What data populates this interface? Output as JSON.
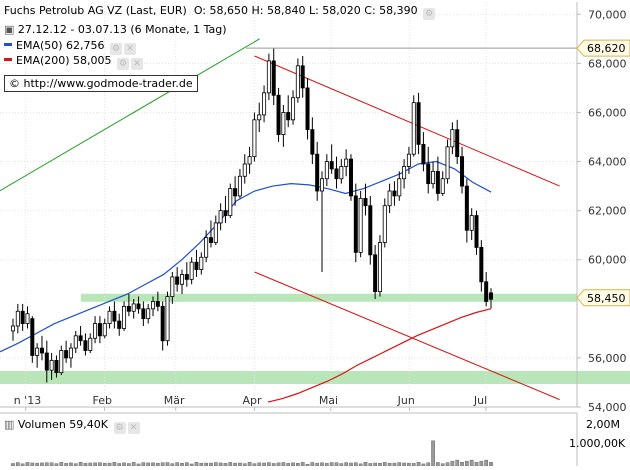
{
  "header": {
    "title": "Fuchs Petrolub AG VZ (Last, EUR)",
    "ohlc": "O: 58,650  H: 58,840  L: 58,020  C: 58,390",
    "range": "27.12.12 - 03.07.13 (6 Monate, 1 Tag)",
    "ema50": "EMA(50)  62,756",
    "ema200": "EMA(200)  58,005",
    "source": "http://www.godmode-trader.de"
  },
  "volume": {
    "label": "Volumen  59,40K",
    "ticks": [
      "2,00M",
      "1.000,00K"
    ]
  },
  "colors": {
    "ema50": "#2050d0",
    "ema200": "#dd1111",
    "channel": "#dd1111",
    "uptrend": "#22a022",
    "support_zone": "#b8e6b8",
    "candle": "#000000"
  },
  "chart_data": {
    "type": "candlestick",
    "ylim": [
      54000,
      70500
    ],
    "y_ticks": [
      {
        "value": 70000,
        "label": "70,000"
      },
      {
        "value": 68000,
        "label": "68,000"
      },
      {
        "value": 66000,
        "label": "66,000"
      },
      {
        "value": 64000,
        "label": "64,000"
      },
      {
        "value": 62000,
        "label": "62,000"
      },
      {
        "value": 60000,
        "label": "60,000"
      },
      {
        "value": 56000,
        "label": "56,000"
      },
      {
        "value": 54000,
        "label": "54,000"
      }
    ],
    "x_ticks": [
      {
        "date": "2013-01-01",
        "label": "n '13"
      },
      {
        "date": "2013-02-01",
        "label": "Feb"
      },
      {
        "date": "2013-03-01",
        "label": "Mär"
      },
      {
        "date": "2013-04-01",
        "label": "Apr"
      },
      {
        "date": "2013-05-01",
        "label": "Mai"
      },
      {
        "date": "2013-06-01",
        "label": "Jun"
      },
      {
        "date": "2013-07-01",
        "label": "Jul"
      }
    ],
    "price_markers": [
      {
        "value": 68620,
        "label": "68,620",
        "style": "resistance-line"
      },
      {
        "value": 58450,
        "label": "58,450",
        "style": "support-zone"
      }
    ],
    "ohlc": [
      [
        57100,
        57600,
        56700,
        57300
      ],
      [
        57300,
        58200,
        57000,
        57900
      ],
      [
        57900,
        58200,
        57100,
        57400
      ],
      [
        57400,
        58100,
        57200,
        57800
      ],
      [
        57600,
        57700,
        55800,
        56100
      ],
      [
        56100,
        56600,
        55600,
        56400
      ],
      [
        56400,
        56900,
        55900,
        56200
      ],
      [
        56200,
        56700,
        55000,
        55500
      ],
      [
        55500,
        56200,
        55100,
        55900
      ],
      [
        55900,
        56100,
        55200,
        55400
      ],
      [
        55400,
        56500,
        55300,
        56300
      ],
      [
        56300,
        56700,
        55800,
        56000
      ],
      [
        56000,
        56600,
        55600,
        56400
      ],
      [
        56400,
        57100,
        56200,
        56900
      ],
      [
        56900,
        57300,
        56500,
        56700
      ],
      [
        56700,
        57000,
        56100,
        56300
      ],
      [
        56300,
        57000,
        56200,
        56800
      ],
      [
        56800,
        57700,
        56600,
        57400
      ],
      [
        57400,
        57700,
        56600,
        56900
      ],
      [
        56900,
        57600,
        56800,
        57400
      ],
      [
        57400,
        58100,
        57200,
        57900
      ],
      [
        57900,
        58300,
        57200,
        57500
      ],
      [
        57500,
        57800,
        56900,
        57200
      ],
      [
        57200,
        58300,
        57100,
        58100
      ],
      [
        58100,
        58600,
        57700,
        57900
      ],
      [
        57900,
        58400,
        57600,
        58200
      ],
      [
        58200,
        58500,
        57800,
        58000
      ],
      [
        58000,
        58300,
        57300,
        57600
      ],
      [
        57600,
        58200,
        57400,
        58000
      ],
      [
        58000,
        58500,
        57700,
        58300
      ],
      [
        58300,
        58700,
        57900,
        58100
      ],
      [
        58100,
        58300,
        56300,
        56700
      ],
      [
        56700,
        58700,
        56500,
        58500
      ],
      [
        58500,
        59500,
        58200,
        59300
      ],
      [
        59300,
        59700,
        58700,
        59000
      ],
      [
        59000,
        59600,
        58600,
        59400
      ],
      [
        59400,
        59900,
        58900,
        59200
      ],
      [
        59200,
        60100,
        59000,
        59900
      ],
      [
        59900,
        60400,
        59300,
        59600
      ],
      [
        59600,
        60300,
        59400,
        60100
      ],
      [
        60100,
        61200,
        59900,
        60900
      ],
      [
        60900,
        61600,
        60500,
        60700
      ],
      [
        60700,
        61800,
        60600,
        61500
      ],
      [
        61500,
        62300,
        61200,
        62000
      ],
      [
        62000,
        62600,
        61500,
        61800
      ],
      [
        61800,
        63100,
        61700,
        62900
      ],
      [
        62900,
        63400,
        62200,
        62600
      ],
      [
        62600,
        63700,
        62500,
        63400
      ],
      [
        63400,
        64300,
        63100,
        63900
      ],
      [
        63900,
        64600,
        63500,
        64200
      ],
      [
        64200,
        66000,
        64000,
        65700
      ],
      [
        65700,
        66400,
        65200,
        65900
      ],
      [
        65900,
        67100,
        65600,
        66800
      ],
      [
        66800,
        68400,
        66500,
        68100
      ],
      [
        68100,
        68600,
        66300,
        66700
      ],
      [
        66700,
        67000,
        64800,
        65100
      ],
      [
        65100,
        66300,
        64600,
        66000
      ],
      [
        66000,
        66700,
        65400,
        65700
      ],
      [
        65700,
        66900,
        65500,
        66600
      ],
      [
        66600,
        68200,
        66400,
        67900
      ],
      [
        67900,
        68300,
        66600,
        67000
      ],
      [
        67000,
        67400,
        64900,
        65300
      ],
      [
        65300,
        65800,
        63900,
        64300
      ],
      [
        64300,
        64800,
        62400,
        62800
      ],
      [
        62800,
        63600,
        59500,
        63300
      ],
      [
        63300,
        64300,
        63000,
        64000
      ],
      [
        64000,
        64700,
        63500,
        63700
      ],
      [
        63700,
        64200,
        62900,
        63300
      ],
      [
        63300,
        64100,
        63100,
        63800
      ],
      [
        63800,
        64500,
        63400,
        64100
      ],
      [
        64100,
        64300,
        62400,
        62600
      ],
      [
        62600,
        63100,
        59900,
        60300
      ],
      [
        60300,
        62800,
        60100,
        62500
      ],
      [
        62500,
        63100,
        61800,
        62200
      ],
      [
        62200,
        62600,
        59800,
        60200
      ],
      [
        60200,
        60600,
        58400,
        58700
      ],
      [
        58700,
        61000,
        58500,
        60700
      ],
      [
        60700,
        62500,
        60500,
        62200
      ],
      [
        62200,
        63100,
        61900,
        62800
      ],
      [
        62800,
        63200,
        62200,
        62600
      ],
      [
        62600,
        63600,
        62400,
        63300
      ],
      [
        63300,
        64100,
        62900,
        63800
      ],
      [
        63800,
        64600,
        63500,
        64300
      ],
      [
        64300,
        66700,
        64200,
        66400
      ],
      [
        66400,
        66800,
        64300,
        64700
      ],
      [
        64700,
        65200,
        63600,
        63900
      ],
      [
        63900,
        64600,
        62700,
        63100
      ],
      [
        63100,
        64000,
        62900,
        63600
      ],
      [
        63600,
        64200,
        62400,
        62700
      ],
      [
        62700,
        63600,
        62600,
        63300
      ],
      [
        63300,
        64900,
        63100,
        64600
      ],
      [
        64600,
        65600,
        64300,
        65300
      ],
      [
        65300,
        65700,
        63900,
        64200
      ],
      [
        64200,
        64600,
        62700,
        63000
      ],
      [
        63000,
        63300,
        60700,
        61200
      ],
      [
        61200,
        62100,
        60800,
        61800
      ],
      [
        61800,
        62000,
        60200,
        60500
      ],
      [
        60500,
        60800,
        58700,
        59100
      ],
      [
        59100,
        59500,
        58100,
        58300
      ],
      [
        58650,
        58840,
        58020,
        58390
      ]
    ],
    "ema50": [
      56250,
      56600,
      57000,
      57400,
      57700,
      58000,
      58300,
      58600,
      59000,
      59400,
      60000,
      60700,
      61500,
      62400,
      62800,
      63000,
      63100,
      63050,
      62900,
      62700,
      62900,
      63200,
      63500,
      63900,
      64000,
      63700,
      63150,
      62756
    ],
    "ema200": [
      54200,
      54350,
      54550,
      54800,
      55050,
      55350,
      55700,
      56000,
      56300,
      56600,
      56900,
      57150,
      57400,
      57650,
      57850,
      58005
    ],
    "trendlines": [
      {
        "name": "uptrend",
        "from": [
          "2012-12-20",
          62700
        ],
        "to": [
          "2013-04-03",
          69000
        ]
      },
      {
        "name": "channel-top",
        "from": [
          "2013-04-01",
          68300
        ],
        "to": [
          "2013-07-30",
          63000
        ]
      },
      {
        "name": "channel-bottom",
        "from": [
          "2013-04-01",
          59500
        ],
        "to": [
          "2013-07-30",
          54300
        ]
      }
    ]
  }
}
